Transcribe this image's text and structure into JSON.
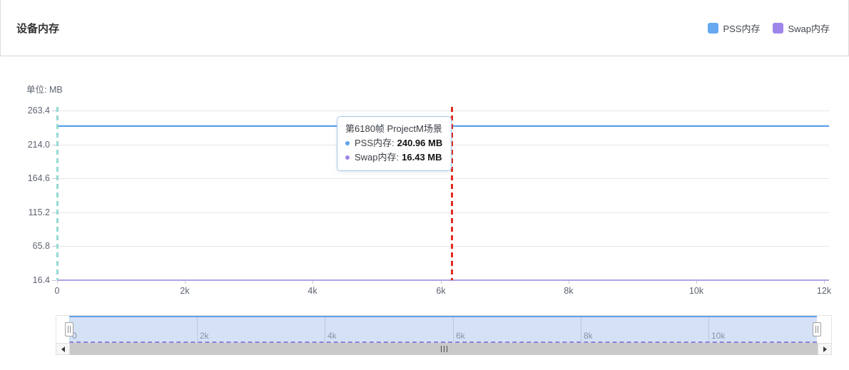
{
  "header": {
    "title": "设备内存",
    "legend": [
      {
        "key": "pss",
        "label": "PSS内存",
        "color": "#66a9f1"
      },
      {
        "key": "swap",
        "label": "Swap内存",
        "color": "#9e85e9"
      }
    ]
  },
  "chart_data": {
    "type": "line",
    "title": "设备内存",
    "unit_label": "单位: MB",
    "ylabel": "MB",
    "ylim": [
      16.4,
      263.4
    ],
    "xlim": [
      0,
      12000
    ],
    "grid": true,
    "legend_position": "top-right",
    "y_ticks": {
      "values": [
        263.4,
        214.0,
        164.6,
        115.2,
        65.8,
        16.4
      ],
      "labels": [
        "263.4",
        "214.0",
        "164.6",
        "115.2",
        "65.8",
        "16.4"
      ]
    },
    "x_ticks": {
      "values": [
        0,
        2000,
        4000,
        6000,
        8000,
        10000,
        12000
      ],
      "labels": [
        "0",
        "2k",
        "4k",
        "6k",
        "8k",
        "10k",
        "12k"
      ]
    },
    "series": [
      {
        "key": "pss",
        "name": "PSS内存",
        "color": "#5ea4e8",
        "flat_value": 240.96,
        "x_range": [
          0,
          12000
        ]
      },
      {
        "key": "swap",
        "name": "Swap内存",
        "color": "#b0a3e6",
        "flat_value": 16.43,
        "x_range": [
          0,
          12000
        ]
      }
    ],
    "markers": [
      {
        "key": "frame-start",
        "x": 0,
        "color": "#93dad3",
        "style": "dashed"
      },
      {
        "key": "current-frame",
        "x": 6180,
        "color": "#e02b22",
        "style": "dashed"
      }
    ]
  },
  "tooltip": {
    "title": "第6180帧 ProjectM场景",
    "items": [
      {
        "key": "pss",
        "label": "PSS内存",
        "value": "240.96 MB",
        "color": "#5ea4e8"
      },
      {
        "key": "swap",
        "label": "Swap内存",
        "value": "16.43 MB",
        "color": "#9e85e9"
      }
    ]
  },
  "brush": {
    "tick_values": [
      0,
      2000,
      4000,
      6000,
      8000,
      10000
    ],
    "tick_labels": [
      "0",
      "2k",
      "4k",
      "6k",
      "8k",
      "10k"
    ],
    "window": [
      0,
      12000
    ]
  }
}
